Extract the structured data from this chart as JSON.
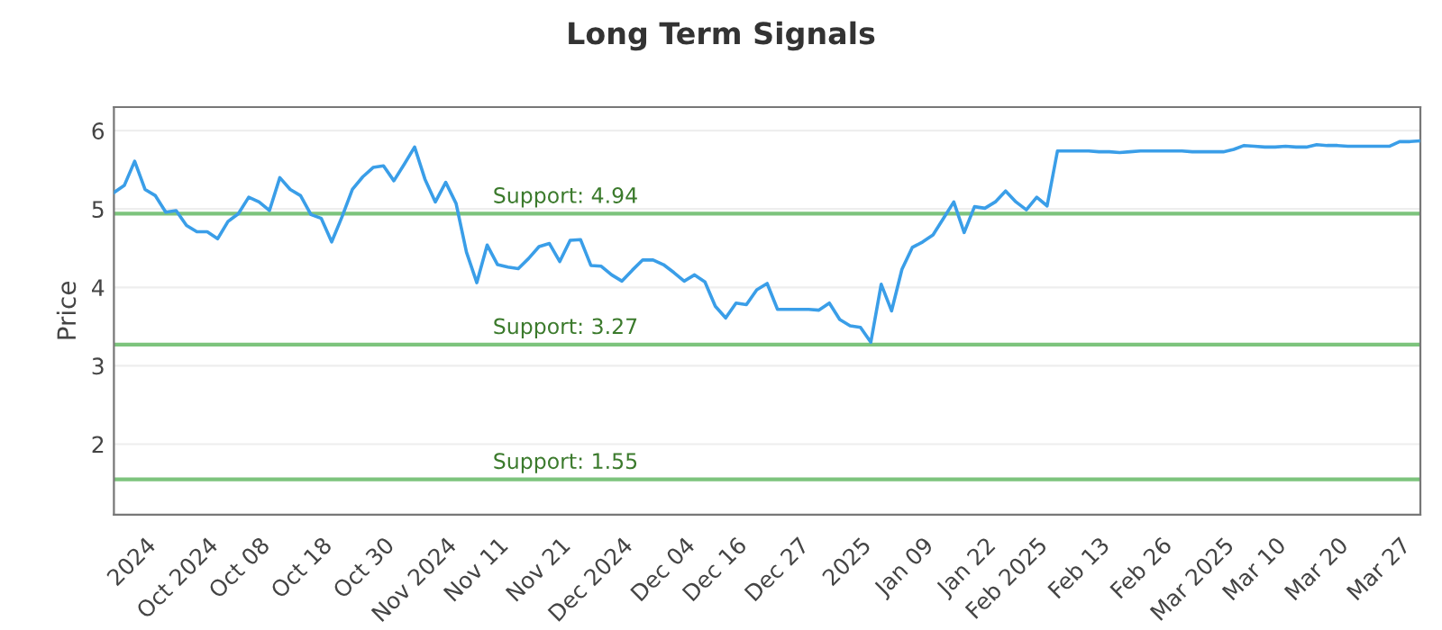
{
  "chart_data": {
    "type": "line",
    "title": "Long Term Signals",
    "ylabel": "Price",
    "categories": [
      null,
      null,
      null,
      "2024",
      null,
      null,
      null,
      null,
      null,
      "Oct 2024",
      null,
      null,
      null,
      null,
      "Oct 08",
      null,
      null,
      null,
      null,
      null,
      "Oct 18",
      null,
      null,
      null,
      null,
      null,
      "Oct 30",
      null,
      null,
      null,
      null,
      null,
      "Nov 2024",
      null,
      null,
      null,
      null,
      "Nov 11",
      null,
      null,
      null,
      null,
      null,
      "Nov 21",
      null,
      null,
      null,
      null,
      null,
      "Dec 2024",
      null,
      null,
      null,
      null,
      null,
      "Dec 04",
      null,
      null,
      null,
      null,
      "Dec 16",
      null,
      null,
      null,
      null,
      null,
      "Dec 27",
      null,
      null,
      null,
      null,
      null,
      "2025",
      null,
      null,
      null,
      null,
      null,
      "Jan 09",
      null,
      null,
      null,
      null,
      null,
      "Jan 22",
      null,
      null,
      null,
      null,
      "Feb 2025",
      null,
      null,
      null,
      null,
      null,
      "Feb 13",
      null,
      null,
      null,
      null,
      null,
      "Feb 26",
      null,
      null,
      null,
      null,
      null,
      "Mar 2025",
      null,
      null,
      null,
      null,
      "Mar 10",
      null,
      null,
      null,
      null,
      null,
      "Mar 20",
      null,
      null,
      null,
      null,
      null,
      "Mar 27",
      null,
      null
    ],
    "series": [
      {
        "color": "#3a9ee8",
        "values": [
          5.21,
          5.3,
          5.61,
          5.25,
          5.17,
          4.96,
          4.98,
          4.79,
          4.71,
          4.71,
          4.62,
          4.84,
          4.94,
          5.15,
          5.09,
          4.98,
          5.4,
          5.25,
          5.17,
          4.93,
          4.88,
          4.58,
          4.9,
          5.25,
          5.41,
          5.53,
          5.55,
          5.36,
          5.57,
          5.79,
          5.38,
          5.09,
          5.34,
          5.07,
          4.45,
          4.06,
          4.54,
          4.29,
          4.26,
          4.24,
          4.37,
          4.52,
          4.56,
          4.33,
          4.6,
          4.61,
          4.28,
          4.27,
          4.16,
          4.08,
          4.22,
          4.35,
          4.35,
          4.29,
          4.19,
          4.08,
          4.16,
          4.07,
          3.76,
          3.61,
          3.8,
          3.78,
          3.97,
          4.05,
          3.72,
          3.72,
          3.72,
          3.72,
          3.71,
          3.8,
          3.59,
          3.51,
          3.49,
          3.3,
          4.04,
          3.7,
          4.23,
          4.51,
          4.58,
          4.67,
          4.88,
          5.09,
          4.7,
          5.03,
          5.01,
          5.09,
          5.23,
          5.09,
          4.99,
          5.15,
          5.04,
          5.74,
          5.74,
          5.74,
          5.74,
          5.73,
          5.73,
          5.72,
          5.73,
          5.74,
          5.74,
          5.74,
          5.74,
          5.74,
          5.73,
          5.73,
          5.73,
          5.73,
          5.76,
          5.81,
          5.8,
          5.79,
          5.79,
          5.8,
          5.79,
          5.79,
          5.82,
          5.81,
          5.81,
          5.8,
          5.8,
          5.8,
          5.8,
          5.8,
          5.86,
          5.86,
          5.87
        ]
      }
    ],
    "ylim": [
      1.1,
      6.3
    ],
    "yticks": [
      2,
      3,
      4,
      5,
      6
    ],
    "grid": "y",
    "marker": "none",
    "line_style": "solid",
    "ref_lines": [
      {
        "axis": "y",
        "value": 4.94,
        "label": "Support: 4.94",
        "color": "#7dc47d"
      },
      {
        "axis": "y",
        "value": 3.27,
        "label": "Support: 3.27",
        "color": "#7dc47d"
      },
      {
        "axis": "y",
        "value": 1.55,
        "label": "Support: 1.55",
        "color": "#7dc47d"
      }
    ]
  }
}
